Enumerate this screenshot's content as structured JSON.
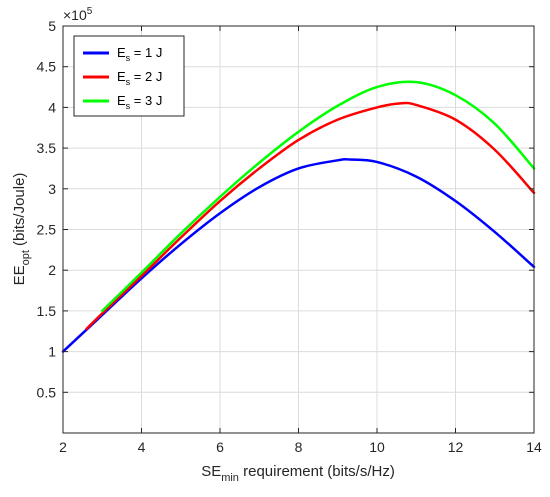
{
  "chart_data": {
    "type": "line",
    "xlabel_main": "SE",
    "xlabel_sub": "min",
    "xlabel_rest": " requirement (bits/s/Hz)",
    "ylabel_main": "EE",
    "ylabel_sub": "opt",
    "ylabel_rest": " (bits/Joule)",
    "y_multiplier_base": "×10",
    "y_multiplier_exp": "5",
    "xlim": [
      2,
      14
    ],
    "ylim": [
      0,
      5
    ],
    "y_scale": 100000,
    "grid": true,
    "legend_position": "top-left",
    "x_ticks": [
      "2",
      "4",
      "6",
      "8",
      "10",
      "12",
      "14"
    ],
    "y_ticks": [
      "0.5",
      "1",
      "1.5",
      "2",
      "2.5",
      "3",
      "3.5",
      "4",
      "4.5",
      "5"
    ],
    "series": [
      {
        "name_main": "E",
        "name_sub": "s",
        "name_rest": " = 1 J",
        "color": "#0000ff",
        "x": [
          2,
          3,
          4,
          5,
          6,
          7,
          8,
          9,
          9.3,
          10,
          11,
          12,
          13,
          14
        ],
        "y": [
          1.0,
          1.45,
          1.9,
          2.32,
          2.7,
          3.02,
          3.25,
          3.35,
          3.36,
          3.33,
          3.15,
          2.85,
          2.47,
          2.04
        ]
      },
      {
        "name_main": "E",
        "name_sub": "s",
        "name_rest": " = 2 J",
        "color": "#ff0000",
        "x": [
          2.6,
          3,
          4,
          5,
          6,
          7,
          8,
          9,
          10,
          10.6,
          11,
          12,
          13,
          14
        ],
        "y": [
          1.28,
          1.47,
          1.93,
          2.4,
          2.85,
          3.25,
          3.6,
          3.85,
          4.0,
          4.05,
          4.03,
          3.85,
          3.48,
          2.95
        ]
      },
      {
        "name_main": "E",
        "name_sub": "s",
        "name_rest": " = 3 J",
        "color": "#00ff00",
        "x": [
          3,
          4,
          5,
          6,
          7,
          8,
          9,
          10,
          11,
          12,
          13,
          14
        ],
        "y": [
          1.5,
          1.97,
          2.45,
          2.9,
          3.32,
          3.7,
          4.02,
          4.25,
          4.31,
          4.15,
          3.8,
          3.25
        ]
      }
    ]
  }
}
